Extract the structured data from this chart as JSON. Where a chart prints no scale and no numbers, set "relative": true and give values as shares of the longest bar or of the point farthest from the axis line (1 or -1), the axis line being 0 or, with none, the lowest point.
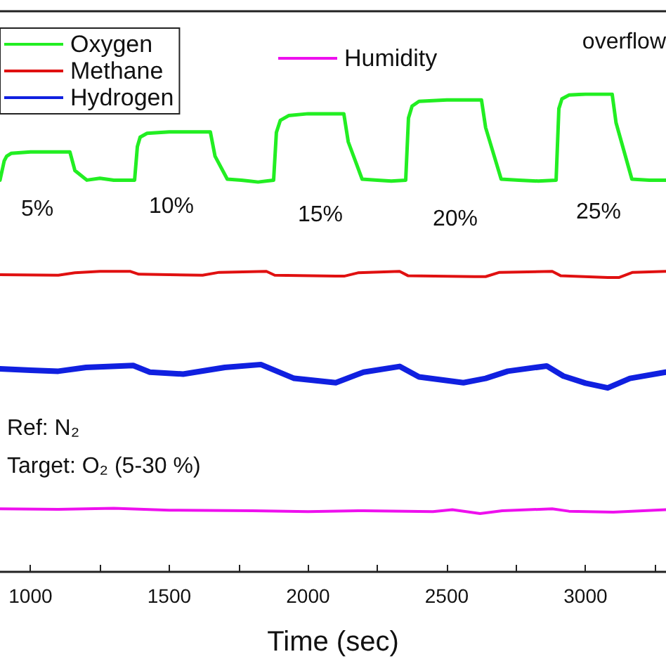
{
  "chart_data": {
    "type": "line",
    "relative": true,
    "xlabel": "Time (sec)",
    "xlim": [
      890,
      3290
    ],
    "xticks": [
      1000,
      {
        "value": 1250,
        "label": null
      },
      1500,
      {
        "value": 1750,
        "label": null
      },
      2000,
      {
        "value": 2250,
        "label": null
      },
      2500,
      {
        "value": 2750,
        "label": null
      },
      3000,
      {
        "value": 3250,
        "label": null
      }
    ],
    "tick_labels": "x",
    "legend": "top left",
    "grid": false,
    "marker": "none",
    "line_style": "solid",
    "series": [
      {
        "name": "Oxygen",
        "color": "#22ee22",
        "x": [
          890,
          905,
          914,
          930,
          1000,
          1142,
          1160,
          1203,
          1250,
          1300,
          1375,
          1385,
          1395,
          1420,
          1500,
          1648,
          1665,
          1709,
          1760,
          1820,
          1876,
          1886,
          1900,
          1930,
          2000,
          2129,
          2145,
          2195,
          2250,
          2300,
          2352,
          2362,
          2375,
          2400,
          2500,
          2625,
          2640,
          2696,
          2760,
          2830,
          2894,
          2904,
          2915,
          2940,
          3000,
          3096,
          3110,
          3167,
          3230,
          3289
        ],
        "values": [
          0.82,
          0.86,
          0.87,
          0.876,
          0.879,
          0.879,
          0.84,
          0.82,
          0.824,
          0.82,
          0.82,
          0.89,
          0.91,
          0.918,
          0.921,
          0.921,
          0.87,
          0.822,
          0.82,
          0.816,
          0.82,
          0.92,
          0.945,
          0.955,
          0.959,
          0.959,
          0.9,
          0.822,
          0.82,
          0.818,
          0.82,
          0.95,
          0.975,
          0.985,
          0.988,
          0.988,
          0.93,
          0.822,
          0.82,
          0.818,
          0.82,
          0.97,
          0.99,
          0.998,
          1,
          1,
          0.94,
          0.822,
          0.82,
          0.82
        ]
      },
      {
        "name": "Methane",
        "color": "#e01010",
        "x": [
          890,
          1100,
          1160,
          1250,
          1360,
          1390,
          1500,
          1620,
          1680,
          1850,
          1880,
          2100,
          2130,
          2180,
          2330,
          2360,
          2600,
          2640,
          2690,
          2880,
          2910,
          3080,
          3120,
          3170,
          3289
        ],
        "values": [
          0.622,
          0.621,
          0.626,
          0.629,
          0.629,
          0.623,
          0.622,
          0.621,
          0.627,
          0.629,
          0.621,
          0.619,
          0.619,
          0.626,
          0.629,
          0.62,
          0.618,
          0.618,
          0.627,
          0.629,
          0.62,
          0.616,
          0.616,
          0.627,
          0.629
        ]
      },
      {
        "name": "Hydrogen",
        "color": "#1020e0",
        "x": [
          890,
          1000,
          1100,
          1200,
          1370,
          1430,
          1550,
          1700,
          1830,
          1950,
          2100,
          2200,
          2330,
          2400,
          2560,
          2640,
          2720,
          2860,
          2920,
          3000,
          3080,
          3160,
          3289
        ],
        "values": [
          0.425,
          0.422,
          0.42,
          0.428,
          0.432,
          0.418,
          0.414,
          0.428,
          0.434,
          0.405,
          0.396,
          0.418,
          0.43,
          0.408,
          0.396,
          0.405,
          0.42,
          0.431,
          0.41,
          0.395,
          0.385,
          0.405,
          0.418
        ]
      },
      {
        "name": "Humidity",
        "color": "#ee10ee",
        "x": [
          890,
          1100,
          1300,
          1500,
          1800,
          2000,
          2200,
          2450,
          2520,
          2620,
          2700,
          2880,
          2940,
          3100,
          3289
        ],
        "values": [
          0.132,
          0.131,
          0.133,
          0.129,
          0.128,
          0.126,
          0.128,
          0.126,
          0.13,
          0.122,
          0.128,
          0.132,
          0.127,
          0.125,
          0.13
        ]
      }
    ],
    "annotations": [
      "5%",
      "10%",
      "15%",
      "20%",
      "25%",
      "overflow",
      "Ref: N₂",
      "Target: O₂ (5-30 %)"
    ]
  }
}
